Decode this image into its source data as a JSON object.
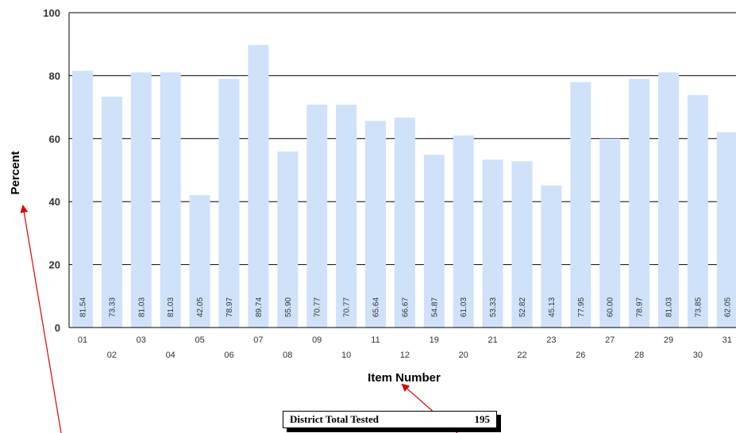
{
  "chart_data": {
    "type": "bar",
    "categories": [
      "01",
      "02",
      "03",
      "04",
      "05",
      "06",
      "07",
      "08",
      "09",
      "10",
      "11",
      "12",
      "19",
      "20",
      "21",
      "22",
      "23",
      "26",
      "27",
      "28",
      "29",
      "30",
      "31"
    ],
    "values": [
      81.54,
      73.33,
      81.03,
      81.03,
      42.05,
      78.97,
      89.74,
      55.9,
      70.77,
      70.77,
      65.64,
      66.67,
      54.87,
      61.03,
      53.33,
      52.82,
      45.13,
      77.95,
      60.0,
      78.97,
      81.03,
      73.85,
      62.05
    ],
    "value_labels": [
      "81.54",
      "73.33",
      "81.03",
      "81.03",
      "42.05",
      "78.97",
      "89.74",
      "55.90",
      "70.77",
      "70.77",
      "65.64",
      "66.67",
      "54.87",
      "61.03",
      "53.33",
      "52.82",
      "45.13",
      "77.95",
      "60.00",
      "78.97",
      "81.03",
      "73.85",
      "62.05"
    ],
    "xlabel": "Item Number",
    "ylabel": "Percent",
    "ylim": [
      0,
      100
    ],
    "y_ticks": [
      "0",
      "20",
      "40",
      "60",
      "80",
      "100"
    ],
    "grid": true,
    "colors": {
      "bar": "#cfe2fa",
      "grid": "#000000",
      "annotation_arrow": "#e00000"
    }
  },
  "summary": {
    "label": "District Total Tested",
    "value": "195"
  }
}
